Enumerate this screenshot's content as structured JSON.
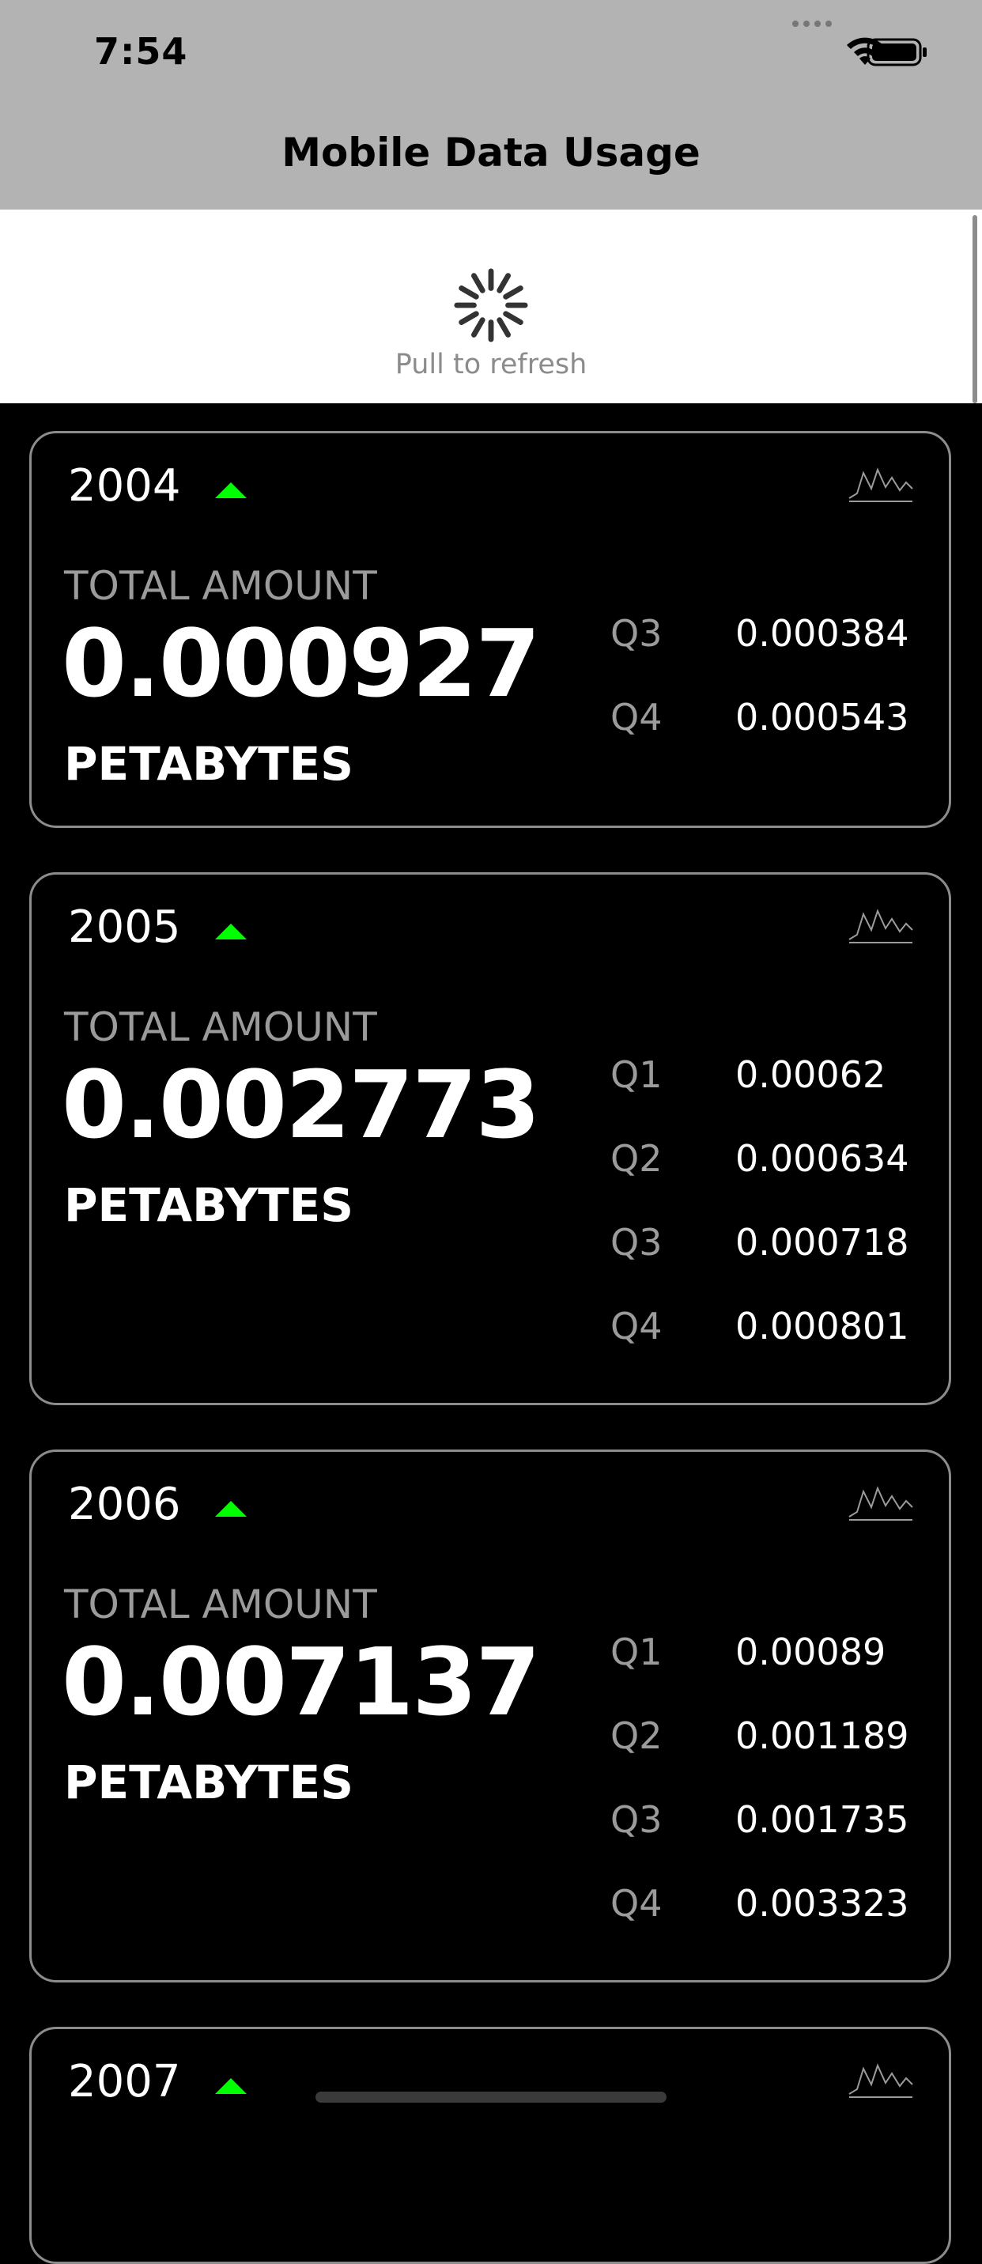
{
  "status_bar": {
    "time": "7:54"
  },
  "nav": {
    "title": "Mobile Data Usage"
  },
  "refresh": {
    "label": "Pull to refresh"
  },
  "colors": {
    "trend_up": "#00ff00",
    "nav_background": "#b3b3b3",
    "card_border": "#8c8c8c"
  },
  "cards": [
    {
      "year": "2004",
      "total_label": "TOTAL AMOUNT",
      "total_value": "0.000927",
      "unit": "PETABYTES",
      "quarters": [
        {
          "label": "Q3",
          "value": "0.000384"
        },
        {
          "label": "Q4",
          "value": "0.000543"
        }
      ]
    },
    {
      "year": "2005",
      "total_label": "TOTAL AMOUNT",
      "total_value": "0.002773",
      "unit": "PETABYTES",
      "quarters": [
        {
          "label": "Q1",
          "value": "0.00062"
        },
        {
          "label": "Q2",
          "value": "0.000634"
        },
        {
          "label": "Q3",
          "value": "0.000718"
        },
        {
          "label": "Q4",
          "value": "0.000801"
        }
      ]
    },
    {
      "year": "2006",
      "total_label": "TOTAL AMOUNT",
      "total_value": "0.007137",
      "unit": "PETABYTES",
      "quarters": [
        {
          "label": "Q1",
          "value": "0.00089"
        },
        {
          "label": "Q2",
          "value": "0.001189"
        },
        {
          "label": "Q3",
          "value": "0.001735"
        },
        {
          "label": "Q4",
          "value": "0.003323"
        }
      ]
    },
    {
      "year": "2007"
    }
  ]
}
